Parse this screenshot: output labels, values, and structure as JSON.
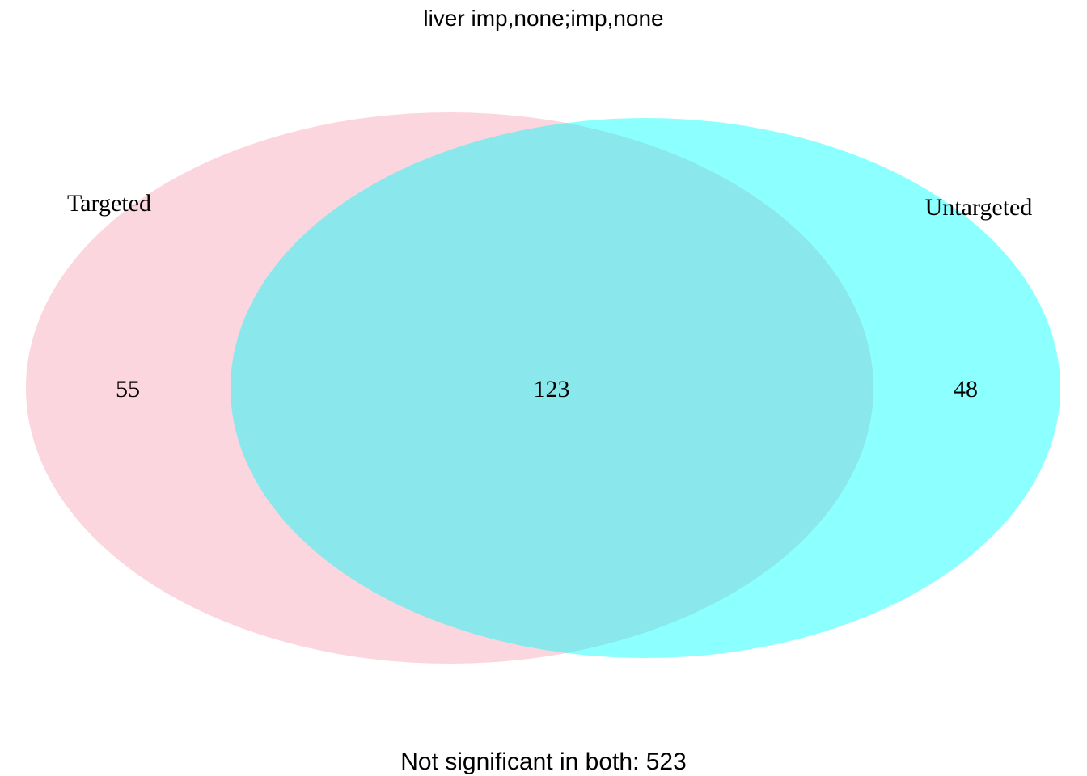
{
  "title": "liver imp,none;imp,none",
  "sets": [
    {
      "name": "Targeted",
      "color": "#FBC5D0",
      "opacity": 0.7
    },
    {
      "name": "Untargeted",
      "color": "#00FFFF",
      "opacity": 0.45
    }
  ],
  "regions": {
    "targeted_only": "55",
    "both": "123",
    "untargeted_only": "48"
  },
  "footer": "Not significant in both: 523"
}
